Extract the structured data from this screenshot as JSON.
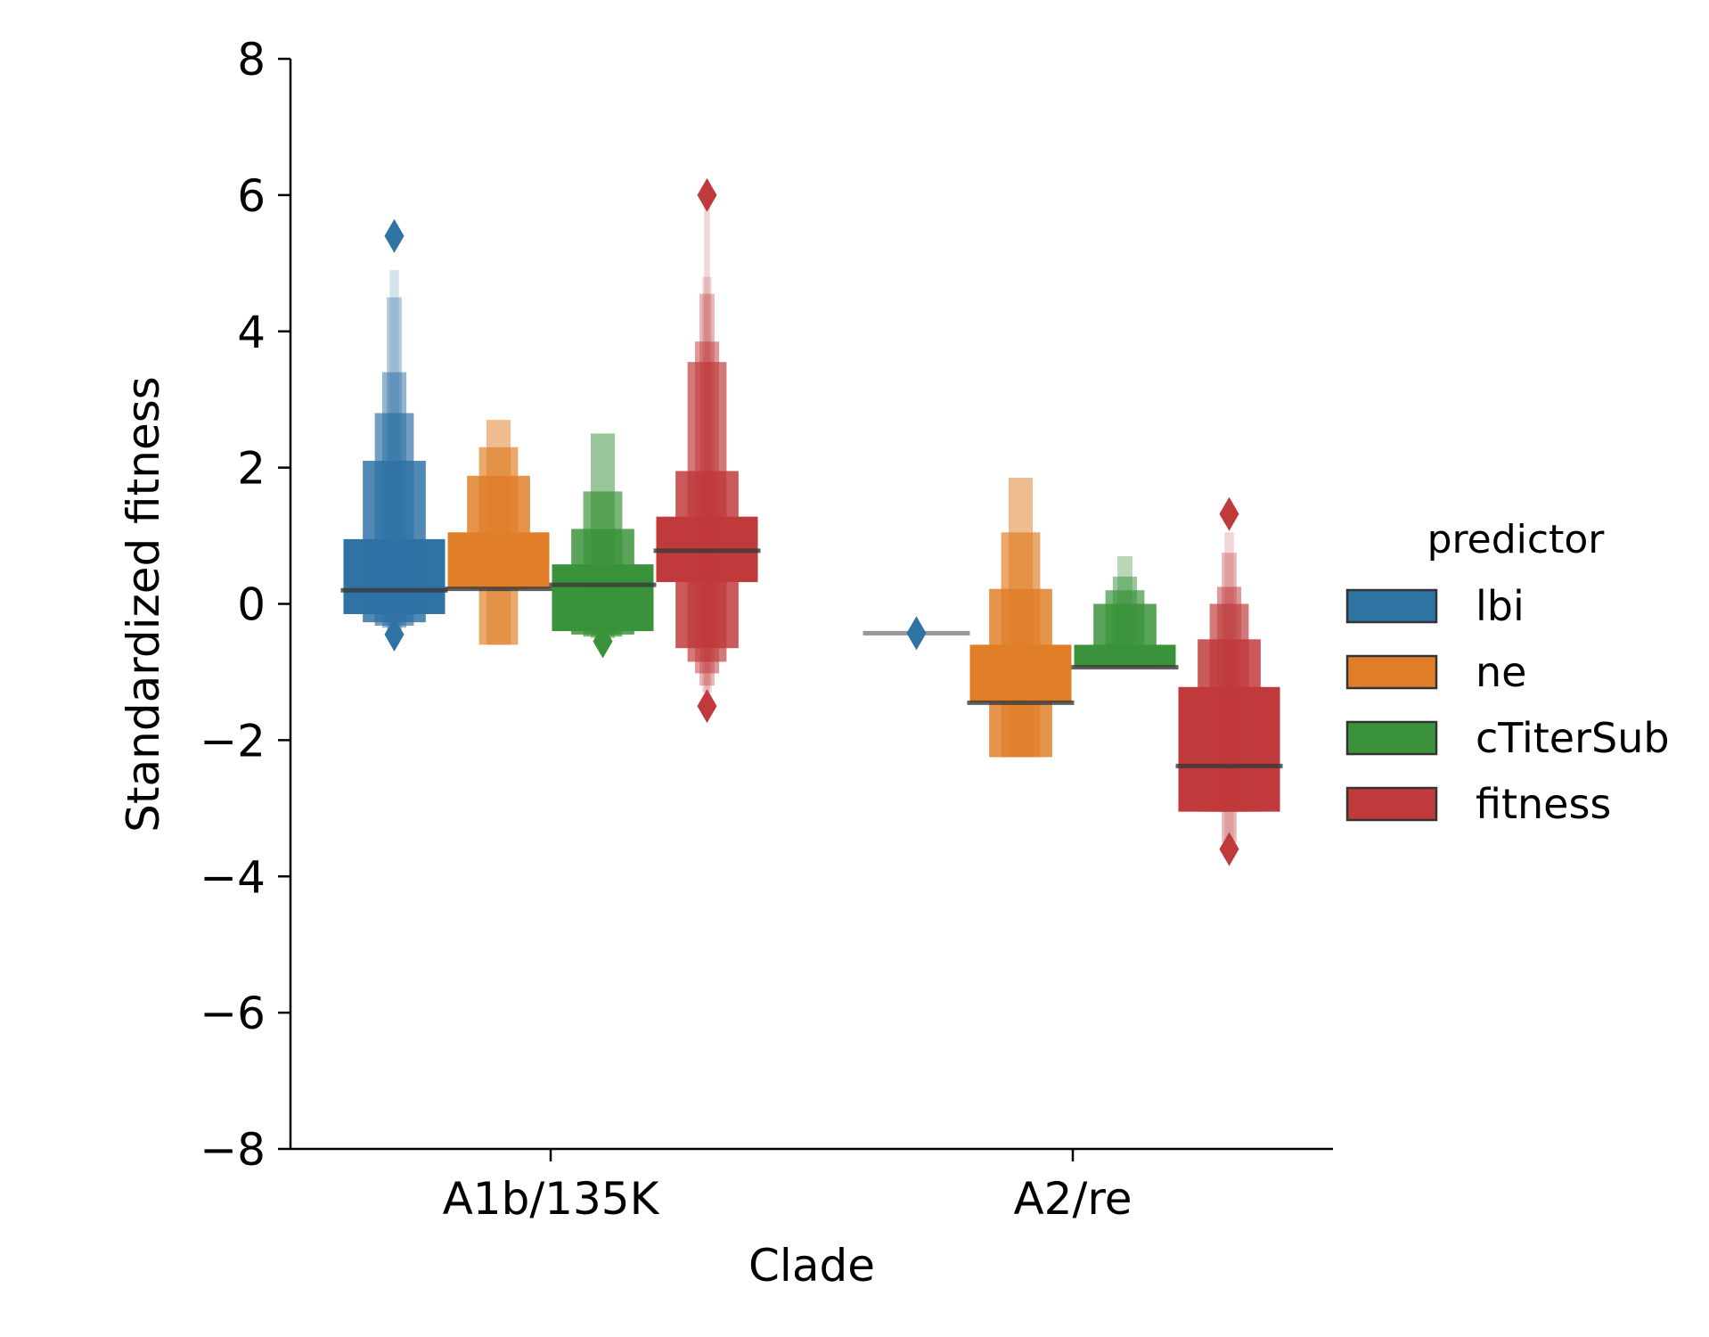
{
  "chart_data": {
    "type": "boxen",
    "xlabel": "Clade",
    "ylabel": "Standardized fitness",
    "ylim": [
      -8,
      8
    ],
    "yticks": [
      -8,
      -6,
      -4,
      -2,
      0,
      2,
      4,
      6,
      8
    ],
    "ytick_labels": [
      "−8",
      "−6",
      "−4",
      "−2",
      "0",
      "2",
      "4",
      "6",
      "8"
    ],
    "categories": [
      "A1b/135K",
      "A2/re"
    ],
    "legend": {
      "title": "predictor",
      "position": "right"
    },
    "colors": {
      "lbi": "#2f72a4",
      "ne": "#e07f28",
      "cTiterSub": "#3a923a",
      "fitness": "#c0393b"
    },
    "series": [
      {
        "name": "lbi",
        "groups": [
          {
            "category": "A1b/135K",
            "median": 0.2,
            "boxes": [
              [
                -0.15,
                0.95
              ],
              [
                -0.27,
                2.1
              ],
              [
                -0.32,
                2.8
              ],
              [
                -0.35,
                3.4
              ],
              [
                -0.38,
                4.5
              ],
              [
                -0.4,
                4.9
              ]
            ],
            "outliers": [
              5.4,
              -0.45
            ]
          },
          {
            "category": "A2/re",
            "median": -0.43,
            "boxes": [],
            "outliers": [
              -0.43
            ]
          }
        ]
      },
      {
        "name": "ne",
        "groups": [
          {
            "category": "A1b/135K",
            "median": 0.22,
            "boxes": [
              [
                0.22,
                1.05
              ],
              [
                0.22,
                1.88
              ],
              [
                -0.6,
                2.3
              ],
              [
                -0.6,
                2.7
              ]
            ],
            "outliers": []
          },
          {
            "category": "A2/re",
            "median": -1.45,
            "boxes": [
              [
                -1.45,
                -0.6
              ],
              [
                -2.25,
                0.22
              ],
              [
                -2.25,
                1.05
              ],
              [
                -2.25,
                1.85
              ]
            ],
            "outliers": []
          }
        ]
      },
      {
        "name": "cTiterSub",
        "groups": [
          {
            "category": "A1b/135K",
            "median": 0.28,
            "boxes": [
              [
                -0.4,
                0.58
              ],
              [
                -0.45,
                1.1
              ],
              [
                -0.48,
                1.65
              ],
              [
                -0.5,
                2.5
              ]
            ],
            "outliers": [
              -0.55
            ]
          },
          {
            "category": "A2/re",
            "median": -0.93,
            "boxes": [
              [
                -0.93,
                -0.6
              ],
              [
                -0.93,
                0.0
              ],
              [
                -0.93,
                0.2
              ],
              [
                -0.93,
                0.4
              ],
              [
                -0.93,
                0.7
              ]
            ],
            "outliers": []
          }
        ]
      },
      {
        "name": "fitness",
        "groups": [
          {
            "category": "A1b/135K",
            "median": 0.78,
            "boxes": [
              [
                0.32,
                1.28
              ],
              [
                -0.65,
                1.95
              ],
              [
                -0.85,
                3.55
              ],
              [
                -1.02,
                3.85
              ],
              [
                -1.2,
                4.55
              ],
              [
                -1.3,
                4.8
              ],
              [
                -1.35,
                5.9
              ]
            ],
            "outliers": [
              6.0,
              -1.5
            ]
          },
          {
            "category": "A2/re",
            "median": -2.38,
            "boxes": [
              [
                -3.05,
                -1.22
              ],
              [
                -3.05,
                -0.52
              ],
              [
                -3.05,
                0.0
              ],
              [
                -3.05,
                0.25
              ],
              [
                -3.5,
                0.75
              ],
              [
                -3.55,
                1.05
              ]
            ],
            "outliers": [
              1.32,
              -3.6
            ]
          }
        ]
      }
    ]
  }
}
